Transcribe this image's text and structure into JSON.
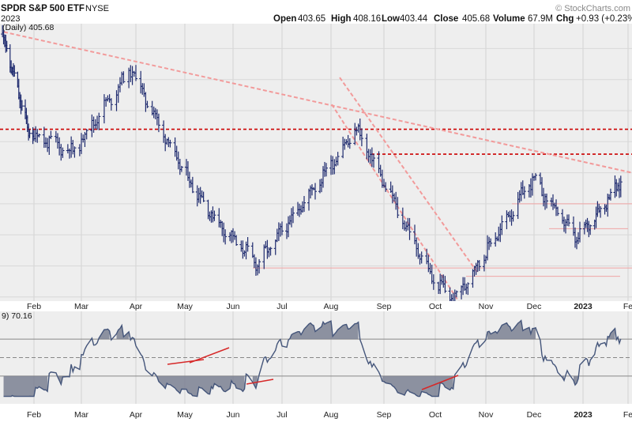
{
  "header": {
    "title": "SPDR S&P 500 ETF",
    "exchange": "NYSE",
    "date": "2023",
    "watermark": "© StockCharts.com",
    "stats": [
      {
        "label": "Open",
        "value": "403.65"
      },
      {
        "label": "High",
        "value": "408.16"
      },
      {
        "label": "Low",
        "value": "403.44"
      },
      {
        "label": "Close",
        "value": "405.68"
      },
      {
        "label": "Volume",
        "value": "67.9M"
      },
      {
        "label": "Chg",
        "value": "+0.93 (+0.23%)"
      }
    ]
  },
  "price_panel": {
    "legend": "(Daily) 405.68"
  },
  "rsi_panel": {
    "legend": "9) 70.16",
    "levels": [
      70,
      50,
      30
    ]
  },
  "colors": {
    "bars": "#1e2a6e",
    "panel_bg": "#eeeeee",
    "trend": "#f29a9a",
    "level": "#cc0000",
    "rsi_line": "#44557a",
    "rsi_fill": "#7a8092",
    "rsi_div": "#d62828"
  },
  "chart_data": [
    {
      "type": "ohlc",
      "title": "SPDR S&P 500 ETF (Daily)",
      "x_tick_labels": [
        "Feb",
        "Mar",
        "Apr",
        "May",
        "Jun",
        "Jul",
        "Aug",
        "Sep",
        "Oct",
        "Nov",
        "Dec",
        "2023",
        "Fe"
      ],
      "x_ticks_data_position_month_index": [
        1,
        2,
        3,
        4,
        5,
        6,
        7,
        8,
        9,
        10,
        11,
        12,
        13
      ],
      "y_range_approx": [
        348,
        482
      ],
      "monthly_path_approx": [
        {
          "date": "2022-01-03",
          "price": 477
        },
        {
          "date": "2022-01-27",
          "price": 430
        },
        {
          "date": "2022-02-24",
          "price": 420
        },
        {
          "date": "2022-03-29",
          "price": 460
        },
        {
          "date": "2022-04-29",
          "price": 412
        },
        {
          "date": "2022-05-20",
          "price": 388
        },
        {
          "date": "2022-06-16",
          "price": 366
        },
        {
          "date": "2022-07-29",
          "price": 411
        },
        {
          "date": "2022-08-16",
          "price": 431
        },
        {
          "date": "2022-09-30",
          "price": 358
        },
        {
          "date": "2022-10-13",
          "price": 349
        },
        {
          "date": "2022-11-30",
          "price": 407
        },
        {
          "date": "2022-12-28",
          "price": 378
        },
        {
          "date": "2023-01-27",
          "price": 405.68
        }
      ],
      "horizontal_levels": [
        431,
        419
      ],
      "trendlines": [
        "falling resistance from Jan high",
        "steep channel Aug–Oct"
      ]
    },
    {
      "type": "line",
      "title": "RSI",
      "current": 70.16,
      "levels": [
        70,
        50,
        30
      ],
      "y_range": [
        0,
        100
      ]
    }
  ]
}
